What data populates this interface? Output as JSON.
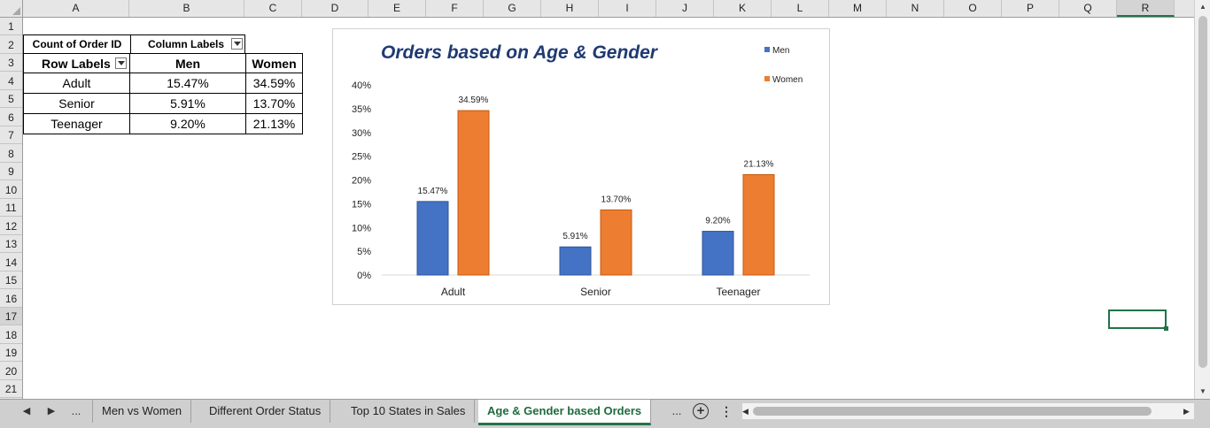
{
  "columns": [
    "A",
    "B",
    "C",
    "D",
    "E",
    "F",
    "G",
    "H",
    "I",
    "J",
    "K",
    "L",
    "M",
    "N",
    "O",
    "P",
    "Q",
    "R"
  ],
  "rows": [
    "1",
    "2",
    "3",
    "4",
    "5",
    "6",
    "7",
    "8",
    "9",
    "10",
    "11",
    "12",
    "13",
    "14",
    "15",
    "16",
    "17",
    "18",
    "19",
    "20",
    "21"
  ],
  "pivot": {
    "count_label": "Count of Order ID",
    "column_labels": "Column Labels",
    "row_labels": "Row Labels",
    "headers": [
      "Men",
      "Women"
    ],
    "data": [
      {
        "label": "Adult",
        "men": "15.47%",
        "women": "34.59%"
      },
      {
        "label": "Senior",
        "men": "5.91%",
        "women": "13.70%"
      },
      {
        "label": "Teenager",
        "men": "9.20%",
        "women": "21.13%"
      }
    ]
  },
  "chart_data": {
    "type": "bar",
    "title": "Orders based on Age & Gender",
    "categories": [
      "Adult",
      "Senior",
      "Teenager"
    ],
    "series": [
      {
        "name": "Men",
        "values": [
          15.47,
          5.91,
          9.2
        ],
        "labels": [
          "15.47%",
          "5.91%",
          "9.20%"
        ],
        "color": "#4472c4"
      },
      {
        "name": "Women",
        "values": [
          34.59,
          13.7,
          21.13
        ],
        "labels": [
          "34.59%",
          "13.70%",
          "21.13%"
        ],
        "color": "#ed7d31"
      }
    ],
    "ylim": [
      0,
      40
    ],
    "yticks": [
      "0%",
      "5%",
      "10%",
      "15%",
      "20%",
      "25%",
      "30%",
      "35%",
      "40%"
    ],
    "legend": "top-right",
    "grid": false
  },
  "sheet_tabs": [
    "Men vs Women",
    "Different Order Status",
    "Top 10 States in Sales",
    "Age & Gender based Orders"
  ],
  "active_tab": "Age & Gender based Orders",
  "tab_nav": {
    "prev": "◀",
    "next": "▶",
    "more": "...",
    "more_right": "...",
    "add": "+",
    "options": "⋮"
  },
  "scroll_arrows": {
    "left": "◀",
    "right": "▶",
    "up": "▲",
    "down": "▼"
  }
}
